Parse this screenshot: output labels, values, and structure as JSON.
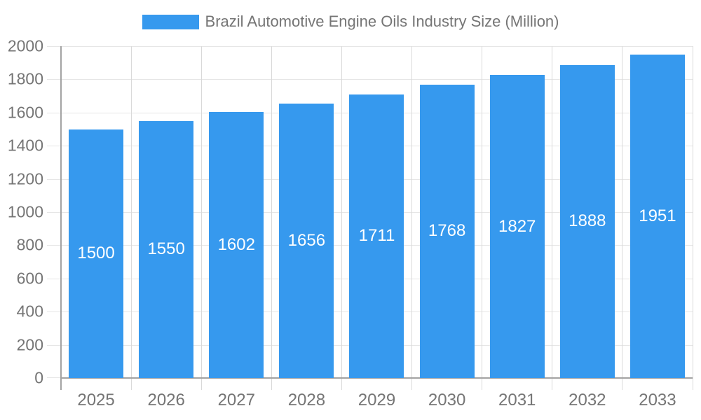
{
  "legend": {
    "label": "Brazil Automotive Engine Oils Industry Size (Million)"
  },
  "colors": {
    "bar": "#3699EE",
    "text": "#757575",
    "value_label": "#FFFFFF",
    "hgrid": "#E6E6E6",
    "vgrid": "#D9D9D9",
    "axis": "#A3A3A3"
  },
  "chart_data": {
    "type": "bar",
    "title": "Brazil Automotive Engine Oils Industry Size (Million)",
    "categories": [
      "2025",
      "2026",
      "2027",
      "2028",
      "2029",
      "2030",
      "2031",
      "2032",
      "2033"
    ],
    "values": [
      1500,
      1550,
      1602,
      1656,
      1711,
      1768,
      1827,
      1888,
      1951
    ],
    "xlabel": "",
    "ylabel": "",
    "ylim": [
      0,
      2000
    ],
    "ytick_step": 200,
    "ytick_labels": [
      "0",
      "200",
      "400",
      "600",
      "800",
      "1000",
      "1200",
      "1400",
      "1600",
      "1800",
      "2000"
    ],
    "grid": true,
    "legend_position": "top",
    "value_label_position": "centered-in-bar"
  }
}
